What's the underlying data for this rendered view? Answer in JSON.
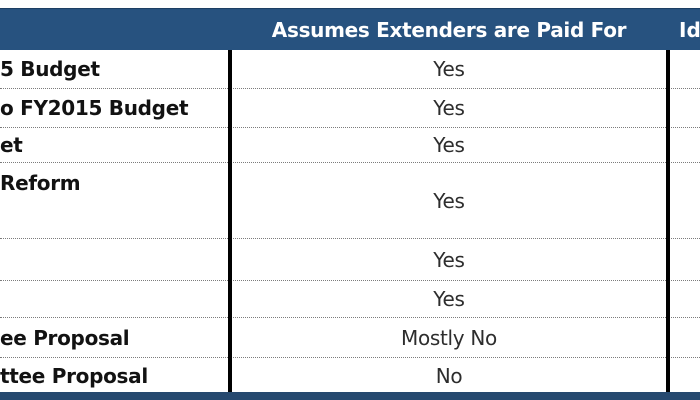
{
  "table": {
    "header": {
      "col_extenders": "Assumes Extenders are Paid For",
      "col_right_partial": "Id"
    },
    "rows": [
      {
        "label": "5 Budget",
        "value": "Yes"
      },
      {
        "label": "o FY2015 Budget",
        "value": "Yes"
      },
      {
        "label": "et",
        "value": "Yes"
      },
      {
        "label": "Reform",
        "value": "Yes"
      },
      {
        "label": "",
        "value": "Yes"
      },
      {
        "label": "",
        "value": "Yes"
      },
      {
        "label": "ee Proposal",
        "value": "Mostly No"
      },
      {
        "label": "ttee Proposal",
        "value": "No"
      }
    ],
    "colors": {
      "header_bg": "#27527F",
      "header_text": "#FFFFFF",
      "label_text": "#121212",
      "value_text": "#2D2D2D",
      "dotted_grid": "#7C7C7C",
      "column_divider": "#000000",
      "bottom_bar": "#26496F"
    }
  }
}
